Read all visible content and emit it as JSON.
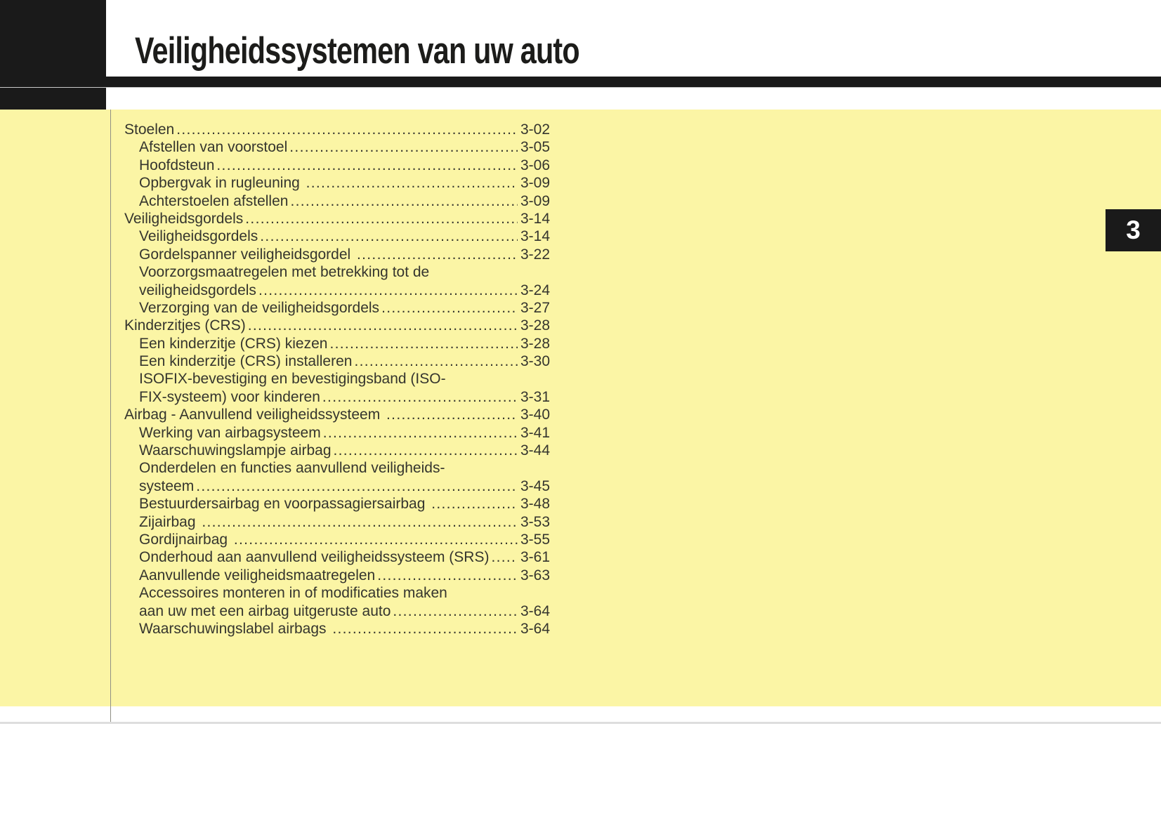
{
  "page": {
    "title": "Veiligheidssystemen van uw auto",
    "chapter_number": "3"
  },
  "colors": {
    "background_yellow": "#fbf5a5",
    "header_black": "#1a1a1a",
    "text": "#35352e",
    "tab_text": "#ffffff",
    "margin_rule_gray": "#8f8f85",
    "footer_rule_gray": "#dedede"
  },
  "toc": {
    "rows": [
      {
        "level": 1,
        "text": "Stoelen",
        "page": "3-02"
      },
      {
        "level": 2,
        "text": "Afstellen van voorstoel",
        "page": "3-05"
      },
      {
        "level": 2,
        "text": "Hoofdsteun",
        "page": "3-06"
      },
      {
        "level": 2,
        "text": "Opbergvak in rugleuning ",
        "page": "3-09"
      },
      {
        "level": 2,
        "text": "Achterstoelen afstellen",
        "page": "3-09"
      },
      {
        "level": 1,
        "text": "Veiligheidsgordels",
        "page": "3-14"
      },
      {
        "level": 2,
        "text": "Veiligheidsgordels",
        "page": "3-14"
      },
      {
        "level": 2,
        "text": "Gordelspanner veiligheidsgordel ",
        "page": "3-22"
      },
      {
        "level": 2,
        "text": "Voorzorgsmaatregelen met betrekking tot de",
        "page": null
      },
      {
        "level": 2,
        "text": "veiligheidsgordels",
        "page": "3-24"
      },
      {
        "level": 2,
        "text": "Verzorging van de veiligheidsgordels",
        "page": "3-27"
      },
      {
        "level": 1,
        "text": "Kinderzitjes (CRS)",
        "page": "3-28"
      },
      {
        "level": 2,
        "text": "Een kinderzitje (CRS) kiezen",
        "page": "3-28"
      },
      {
        "level": 2,
        "text": "Een kinderzitje (CRS) installeren",
        "page": "3-30"
      },
      {
        "level": 2,
        "text": "ISOFIX-bevestiging en bevestigingsband (ISO-",
        "page": null
      },
      {
        "level": 2,
        "text": "FIX-systeem) voor kinderen",
        "page": "3-31"
      },
      {
        "level": 1,
        "text": "Airbag - Aanvullend veiligheidssysteem ",
        "page": "3-40"
      },
      {
        "level": 2,
        "text": "Werking van airbagsysteem",
        "page": "3-41"
      },
      {
        "level": 2,
        "text": "Waarschuwingslampje airbag",
        "page": "3-44"
      },
      {
        "level": 2,
        "text": "Onderdelen en functies aanvullend veiligheids-",
        "page": null
      },
      {
        "level": 2,
        "text": "systeem",
        "page": "3-45"
      },
      {
        "level": 2,
        "text": "Bestuurdersairbag en voorpassagiersairbag ",
        "page": "3-48"
      },
      {
        "level": 2,
        "text": "Zijairbag ",
        "page": "3-53"
      },
      {
        "level": 2,
        "text": "Gordijnairbag ",
        "page": "3-55"
      },
      {
        "level": 2,
        "text": "Onderhoud aan aanvullend veiligheidssysteem (SRS)",
        "page": "3-61"
      },
      {
        "level": 2,
        "text": "Aanvullende veiligheidsmaatregelen",
        "page": "3-63"
      },
      {
        "level": 2,
        "text": "Accessoires monteren in of modificaties maken",
        "page": null
      },
      {
        "level": 2,
        "text": "aan uw met een airbag uitgeruste auto",
        "page": "3-64"
      },
      {
        "level": 2,
        "text": "Waarschuwingslabel airbags ",
        "page": "3-64"
      }
    ]
  }
}
